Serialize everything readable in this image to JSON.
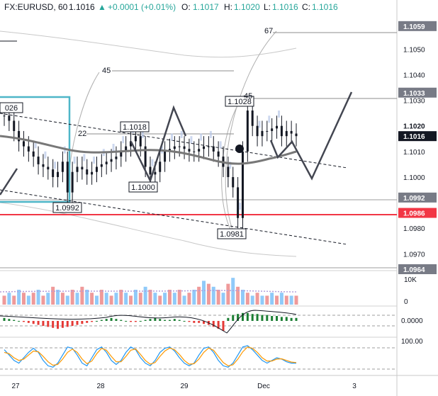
{
  "header": {
    "symbol": "FX:EURUSD, 60",
    "last": "1.1016",
    "change_arrow": "▲",
    "change": "+0.0001 (+0.01%)",
    "o_label": "O:",
    "o_value": "1.1017",
    "h_label": "H:",
    "h_value": "1.1020",
    "l_label": "L:",
    "l_value": "1.1016",
    "c_label": "C:",
    "c_value": "1.1016",
    "change_color": "#26a69a"
  },
  "price_axis": {
    "ticks": [
      "1.1050",
      "1.1040",
      "1.1030",
      "1.1010",
      "1.1000",
      "1.0980",
      "1.0970"
    ],
    "labels": [
      {
        "text": "1.1059",
        "price": 1.1059,
        "bg": "#787b86"
      },
      {
        "text": "1.1033",
        "price": 1.1033,
        "bg": "#787b86"
      },
      {
        "text": "1.1020",
        "price": 1.102,
        "bg": "#ffffff",
        "fg": "#131722"
      },
      {
        "text": "1.1016",
        "price": 1.1016,
        "bg": "#131722"
      },
      {
        "text": "1.0992",
        "price": 1.0992,
        "bg": "#787b86"
      },
      {
        "text": "1.0986",
        "price": 1.0986,
        "bg": "#f23645"
      },
      {
        "text": "1.0964",
        "price": 1.0964,
        "bg": "#787b86"
      }
    ]
  },
  "annotations": {
    "n67": "67",
    "n45a": "45",
    "n45b": "45",
    "n22": "22",
    "p1018": "1.1018",
    "p1000": "1.1000",
    "p0992": "1.0992",
    "p1028": "1.1028",
    "p0981": "1.0981",
    "p026": "026"
  },
  "volume_axis": {
    "tick": "10K",
    "zero": "0"
  },
  "osc_axis": {
    "value": "0.0000"
  },
  "stoch_axis": {
    "value": "100.00"
  },
  "time_axis": {
    "labels": [
      "27",
      "28",
      "29",
      "Dec",
      "3"
    ]
  },
  "colors": {
    "support_line": "#f23645",
    "box": "#4eb6c8",
    "moving_average": "#787878",
    "bull": "#26a69a",
    "bear": "#ef5350"
  },
  "chart_data": [
    {
      "type": "candlestick",
      "symbol": "FX:EURUSD",
      "timeframe": "60",
      "ylim": [
        1.0964,
        1.1062
      ],
      "x_labels": [
        "27",
        "28",
        "29",
        "Dec",
        "3"
      ],
      "horizontal_levels": [
        1.1059,
        1.1033,
        1.0992,
        1.0986,
        1.0964
      ],
      "close_series": [
        1.1024,
        1.1022,
        1.1018,
        1.1014,
        1.1012,
        1.101,
        1.1008,
        1.1005,
        1.1004,
        1.1003,
        1.1,
        1.1002,
        1.1006,
        1.0994,
        1.1002,
        1.1004,
        1.1003,
        1.1001,
        1.1002,
        1.1004,
        1.1005,
        1.1006,
        1.1007,
        1.1008,
        1.101,
        1.1012,
        1.1014,
        1.1016,
        1.1012,
        1.1004,
        1.1001,
        1.1002,
        1.1006,
        1.101,
        1.1011,
        1.1012,
        1.1012,
        1.1011,
        1.101,
        1.101,
        1.1011,
        1.1012,
        1.1012,
        1.101,
        1.1008,
        1.1004,
        1.1,
        1.0996,
        1.0984,
        1.101,
        1.1026,
        1.102,
        1.1016,
        1.1018,
        1.1018,
        1.1019,
        1.102,
        1.1016,
        1.1018,
        1.1017,
        1.1016
      ],
      "annotations": [
        "1.1018",
        "1.1000",
        "1.0992",
        "1.1028",
        "1.0981"
      ]
    },
    {
      "type": "bar",
      "name": "volume",
      "values": [
        3,
        4,
        3,
        5,
        4,
        3,
        4,
        5,
        3,
        4,
        6,
        5,
        4,
        3,
        5,
        4,
        6,
        5,
        4,
        3,
        5,
        4,
        3,
        4,
        5,
        4,
        3,
        5,
        4,
        6,
        5,
        4,
        3,
        4,
        5,
        4,
        5,
        3,
        4,
        5,
        6,
        8,
        7,
        6,
        5,
        4,
        7,
        9,
        6,
        5,
        4,
        3,
        4,
        3,
        3,
        4,
        3,
        4,
        3,
        3,
        3
      ],
      "ylim": [
        0,
        10
      ],
      "ticks": [
        "10K",
        "0"
      ]
    },
    {
      "type": "bar",
      "name": "histogram",
      "values": [
        3,
        2,
        1,
        0,
        -1,
        -2,
        -3,
        -4,
        -5,
        -6,
        -7,
        -8,
        -7,
        -6,
        -5,
        -4,
        -3,
        -2,
        -1,
        0,
        1,
        2,
        3,
        2,
        1,
        0,
        -1,
        -1,
        0,
        1,
        2,
        3,
        2,
        1,
        1,
        2,
        1,
        0,
        -1,
        -2,
        -2,
        -3,
        -4,
        -6,
        -8,
        -10,
        3,
        6,
        7,
        8,
        8,
        7,
        7,
        6,
        6,
        5,
        5,
        4,
        4,
        3,
        3
      ],
      "ylim": [
        -10,
        10
      ],
      "ticks": [
        "0.0000"
      ]
    },
    {
      "type": "line",
      "name": "stochastic",
      "series": [
        {
          "values": [
            80,
            60,
            40,
            30,
            50,
            70,
            85,
            70,
            40,
            20,
            15,
            30,
            60,
            90,
            85,
            60,
            30,
            20,
            50,
            80,
            90,
            70,
            40,
            25,
            40,
            70,
            90,
            80,
            50,
            30,
            20,
            40,
            70,
            85,
            90,
            75,
            50,
            30,
            20,
            30,
            60,
            85,
            90,
            70,
            40,
            20,
            15,
            30,
            60,
            90,
            95,
            80,
            60,
            40,
            30,
            40,
            50,
            45,
            35,
            30,
            30
          ]
        },
        {
          "values": [
            70,
            65,
            50,
            40,
            45,
            60,
            75,
            72,
            55,
            35,
            22,
            25,
            45,
            70,
            82,
            70,
            45,
            28,
            38,
            65,
            85,
            78,
            55,
            35,
            35,
            55,
            78,
            83,
            62,
            40,
            26,
            32,
            55,
            75,
            86,
            80,
            62,
            40,
            26,
            28,
            45,
            70,
            86,
            78,
            55,
            32,
            20,
            24,
            45,
            72,
            90,
            85,
            70,
            50,
            38,
            38,
            45,
            46,
            40,
            34,
            32
          ]
        }
      ],
      "ylim": [
        0,
        100
      ],
      "ticks": [
        "100.00"
      ]
    }
  ]
}
